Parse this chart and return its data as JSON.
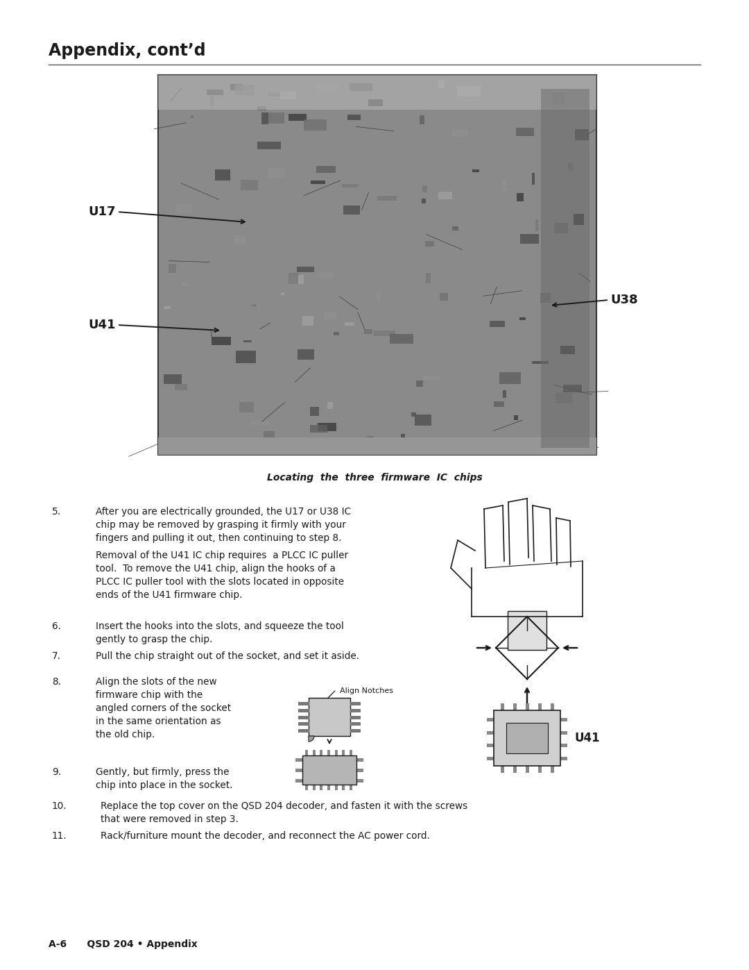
{
  "page_width": 10.8,
  "page_height": 13.97,
  "dpi": 100,
  "bg_color": "#ffffff",
  "text_color": "#1a1a1a",
  "header_title": "Appendix, cont’d",
  "header_line_color": "#555555",
  "footer_text": "A-6      QSD 204 • Appendix",
  "caption_text": "Locating  the  three  firmware  IC  chips",
  "label_u17": "U17",
  "label_u38": "U38",
  "label_u41": "U41",
  "label_fontsize": 13,
  "header_fontsize": 17,
  "footer_fontsize": 10,
  "caption_fontsize": 10,
  "body_fontsize": 9.8,
  "pcb_color": "#8a8a8a",
  "pcb_border_color": "#333333",
  "line_color": "#000000"
}
